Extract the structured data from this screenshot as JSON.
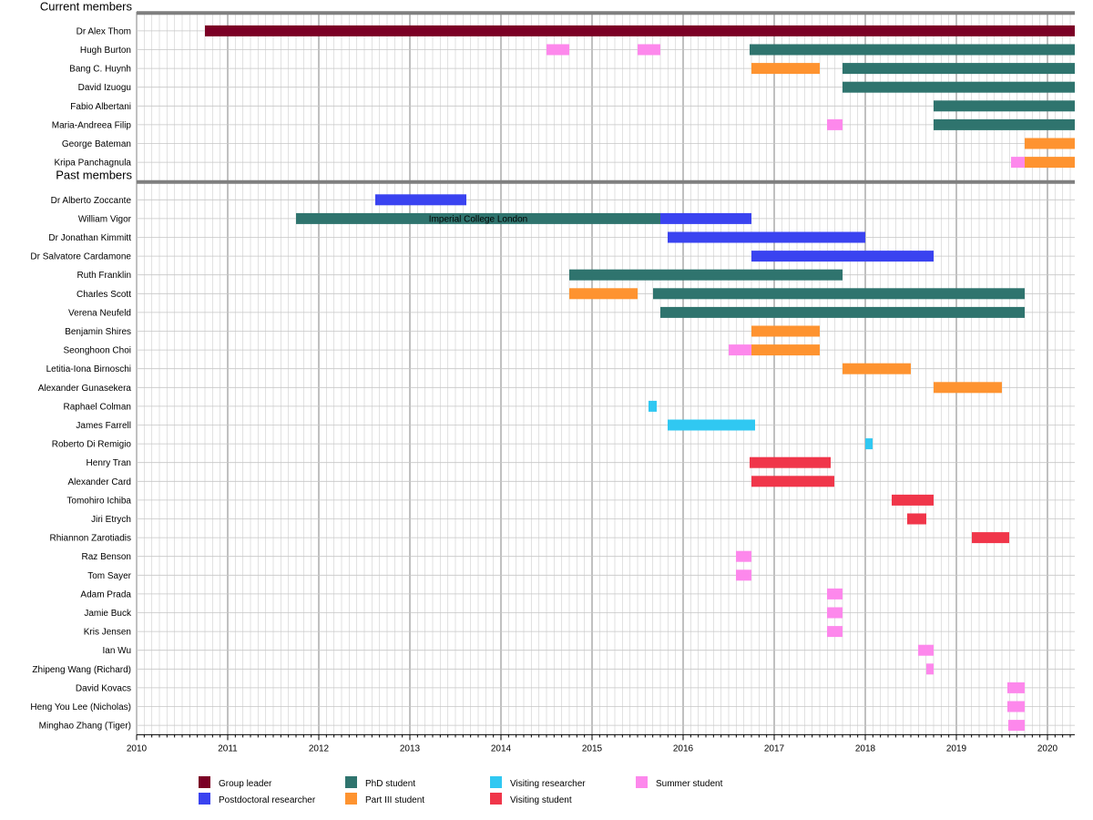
{
  "chart_data": {
    "type": "timeline",
    "x_range": [
      2010,
      2020.3
    ],
    "x_ticks": [
      "2010",
      "2011",
      "2012",
      "2013",
      "2014",
      "2015",
      "2016",
      "2017",
      "2018",
      "2019",
      "2020"
    ],
    "sections": [
      {
        "title": "Current members",
        "rows": [
          {
            "name": "Dr Alex Thom",
            "bars": [
              {
                "start": 2010.75,
                "end": 2020.3,
                "role": "group_leader"
              }
            ]
          },
          {
            "name": "Hugh Burton",
            "bars": [
              {
                "start": 2014.5,
                "end": 2014.75,
                "role": "summer"
              },
              {
                "start": 2015.5,
                "end": 2015.75,
                "role": "summer"
              },
              {
                "start": 2016.73,
                "end": 2020.3,
                "role": "phd"
              }
            ]
          },
          {
            "name": "Bang C. Huynh",
            "bars": [
              {
                "start": 2016.75,
                "end": 2017.5,
                "role": "part3"
              },
              {
                "start": 2017.75,
                "end": 2020.3,
                "role": "phd"
              }
            ]
          },
          {
            "name": "David Izuogu",
            "bars": [
              {
                "start": 2017.75,
                "end": 2020.3,
                "role": "phd"
              }
            ]
          },
          {
            "name": "Fabio Albertani",
            "bars": [
              {
                "start": 2018.75,
                "end": 2020.3,
                "role": "phd"
              }
            ]
          },
          {
            "name": "Maria-Andreea Filip",
            "bars": [
              {
                "start": 2017.58,
                "end": 2017.75,
                "role": "summer"
              },
              {
                "start": 2018.75,
                "end": 2020.3,
                "role": "phd"
              }
            ]
          },
          {
            "name": "George Bateman",
            "bars": [
              {
                "start": 2019.75,
                "end": 2020.3,
                "role": "part3"
              }
            ]
          },
          {
            "name": "Kripa Panchagnula",
            "bars": [
              {
                "start": 2019.6,
                "end": 2019.75,
                "role": "summer"
              },
              {
                "start": 2019.75,
                "end": 2020.3,
                "role": "part3"
              }
            ]
          }
        ]
      },
      {
        "title": "Past members",
        "rows": [
          {
            "name": "Dr Alberto Zoccante",
            "bars": [
              {
                "start": 2012.62,
                "end": 2013.62,
                "role": "postdoc"
              }
            ]
          },
          {
            "name": "William Vigor",
            "bars": [
              {
                "start": 2011.75,
                "end": 2015.75,
                "role": "phd"
              },
              {
                "start": 2015.75,
                "end": 2016.75,
                "role": "postdoc"
              }
            ]
          },
          {
            "name": "Dr Jonathan Kimmitt",
            "bars": [
              {
                "start": 2015.83,
                "end": 2018.0,
                "role": "postdoc"
              }
            ]
          },
          {
            "name": "Dr Salvatore Cardamone",
            "bars": [
              {
                "start": 2016.75,
                "end": 2018.75,
                "role": "postdoc"
              }
            ]
          },
          {
            "name": "Ruth Franklin",
            "bars": [
              {
                "start": 2014.75,
                "end": 2017.75,
                "role": "phd"
              }
            ]
          },
          {
            "name": "Charles Scott",
            "bars": [
              {
                "start": 2014.75,
                "end": 2015.5,
                "role": "part3"
              },
              {
                "start": 2015.67,
                "end": 2019.75,
                "role": "phd"
              }
            ]
          },
          {
            "name": "Verena Neufeld",
            "bars": [
              {
                "start": 2015.75,
                "end": 2019.75,
                "role": "phd"
              }
            ]
          },
          {
            "name": "Benjamin Shires",
            "bars": [
              {
                "start": 2016.75,
                "end": 2017.5,
                "role": "part3"
              }
            ]
          },
          {
            "name": "Seonghoon Choi",
            "bars": [
              {
                "start": 2016.5,
                "end": 2016.75,
                "role": "summer"
              },
              {
                "start": 2016.75,
                "end": 2017.5,
                "role": "part3"
              }
            ]
          },
          {
            "name": "Letitia-Iona Birnoschi",
            "bars": [
              {
                "start": 2017.75,
                "end": 2018.5,
                "role": "part3"
              }
            ]
          },
          {
            "name": "Alexander Gunasekera",
            "bars": [
              {
                "start": 2018.75,
                "end": 2019.5,
                "role": "part3"
              }
            ]
          },
          {
            "name": "Raphael Colman",
            "bars": [
              {
                "start": 2015.62,
                "end": 2015.71,
                "role": "visiting_researcher"
              }
            ]
          },
          {
            "name": "James Farrell",
            "bars": [
              {
                "start": 2015.83,
                "end": 2016.79,
                "role": "visiting_researcher"
              }
            ]
          },
          {
            "name": "Roberto Di Remigio",
            "bars": [
              {
                "start": 2018.0,
                "end": 2018.08,
                "role": "visiting_researcher"
              }
            ]
          },
          {
            "name": "Henry Tran",
            "bars": [
              {
                "start": 2016.73,
                "end": 2017.62,
                "role": "visiting_student"
              }
            ]
          },
          {
            "name": "Alexander Card",
            "bars": [
              {
                "start": 2016.75,
                "end": 2017.66,
                "role": "visiting_student"
              }
            ]
          },
          {
            "name": "Tomohiro Ichiba",
            "bars": [
              {
                "start": 2018.29,
                "end": 2018.75,
                "role": "visiting_student"
              }
            ]
          },
          {
            "name": "Jiri Etrych",
            "bars": [
              {
                "start": 2018.46,
                "end": 2018.67,
                "role": "visiting_student"
              }
            ]
          },
          {
            "name": "Rhiannon Zarotiadis",
            "bars": [
              {
                "start": 2019.17,
                "end": 2019.58,
                "role": "visiting_student"
              }
            ]
          },
          {
            "name": "Raz Benson",
            "bars": [
              {
                "start": 2016.58,
                "end": 2016.75,
                "role": "summer"
              }
            ]
          },
          {
            "name": "Tom Sayer",
            "bars": [
              {
                "start": 2016.58,
                "end": 2016.75,
                "role": "summer"
              }
            ]
          },
          {
            "name": "Adam Prada",
            "bars": [
              {
                "start": 2017.58,
                "end": 2017.75,
                "role": "summer"
              }
            ]
          },
          {
            "name": "Jamie Buck",
            "bars": [
              {
                "start": 2017.58,
                "end": 2017.75,
                "role": "summer"
              }
            ]
          },
          {
            "name": "Kris Jensen",
            "bars": [
              {
                "start": 2017.58,
                "end": 2017.75,
                "role": "summer"
              }
            ]
          },
          {
            "name": "Ian Wu",
            "bars": [
              {
                "start": 2018.58,
                "end": 2018.75,
                "role": "summer"
              }
            ]
          },
          {
            "name": "Zhipeng Wang (Richard)",
            "bars": [
              {
                "start": 2018.67,
                "end": 2018.75,
                "role": "summer"
              }
            ]
          },
          {
            "name": "David Kovacs",
            "bars": [
              {
                "start": 2019.56,
                "end": 2019.75,
                "role": "summer"
              }
            ]
          },
          {
            "name": "Heng You Lee (Nicholas)",
            "bars": [
              {
                "start": 2019.56,
                "end": 2019.75,
                "role": "summer"
              }
            ]
          },
          {
            "name": "Minghao Zhang (Tiger)",
            "bars": [
              {
                "start": 2019.57,
                "end": 2019.75,
                "role": "summer"
              }
            ]
          }
        ]
      }
    ],
    "annotations": [
      {
        "text": "Imperial College London",
        "row": "William Vigor",
        "x": 2013.75
      }
    ],
    "legend": [
      {
        "role": "group_leader",
        "label": "Group leader",
        "color": "#7b0025"
      },
      {
        "role": "postdoc",
        "label": "Postdoctoral researcher",
        "color": "#3a43f0"
      },
      {
        "role": "phd",
        "label": "PhD student",
        "color": "#2f746e"
      },
      {
        "role": "part3",
        "label": "Part III student",
        "color": "#fe9330"
      },
      {
        "role": "visiting_researcher",
        "label": "Visiting researcher",
        "color": "#30c8f2"
      },
      {
        "role": "visiting_student",
        "label": "Visiting student",
        "color": "#f0364a"
      },
      {
        "role": "summer",
        "label": "Summer student",
        "color": "#fd88ec"
      }
    ]
  }
}
